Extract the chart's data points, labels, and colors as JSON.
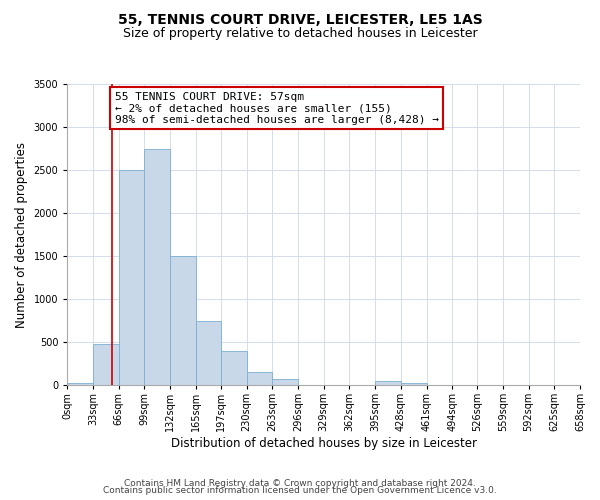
{
  "title": "55, TENNIS COURT DRIVE, LEICESTER, LE5 1AS",
  "subtitle": "Size of property relative to detached houses in Leicester",
  "xlabel": "Distribution of detached houses by size in Leicester",
  "ylabel": "Number of detached properties",
  "bin_edges": [
    0,
    33,
    66,
    99,
    132,
    165,
    197,
    230,
    263,
    296,
    329,
    362,
    395,
    428,
    461,
    494,
    526,
    559,
    592,
    625,
    658
  ],
  "bin_labels": [
    "0sqm",
    "33sqm",
    "66sqm",
    "99sqm",
    "132sqm",
    "165sqm",
    "197sqm",
    "230sqm",
    "263sqm",
    "296sqm",
    "329sqm",
    "362sqm",
    "395sqm",
    "428sqm",
    "461sqm",
    "494sqm",
    "526sqm",
    "559sqm",
    "592sqm",
    "625sqm",
    "658sqm"
  ],
  "counts": [
    25,
    475,
    2500,
    2750,
    1500,
    750,
    400,
    150,
    75,
    0,
    0,
    0,
    50,
    25,
    0,
    0,
    0,
    0,
    0,
    0
  ],
  "bar_color": "#c8d8e8",
  "bar_edge_color": "#7bafd4",
  "property_value": 57,
  "vline_color": "#cc0000",
  "annotation_text": "55 TENNIS COURT DRIVE: 57sqm\n← 2% of detached houses are smaller (155)\n98% of semi-detached houses are larger (8,428) →",
  "annotation_box_color": "#ffffff",
  "annotation_box_edge": "#cc0000",
  "ylim": [
    0,
    3500
  ],
  "yticks": [
    0,
    500,
    1000,
    1500,
    2000,
    2500,
    3000,
    3500
  ],
  "grid_color": "#d0d8e8",
  "footer1": "Contains HM Land Registry data © Crown copyright and database right 2024.",
  "footer2": "Contains public sector information licensed under the Open Government Licence v3.0.",
  "title_fontsize": 10,
  "subtitle_fontsize": 9,
  "label_fontsize": 8.5,
  "tick_fontsize": 7,
  "footer_fontsize": 6.5,
  "annot_fontsize": 8
}
